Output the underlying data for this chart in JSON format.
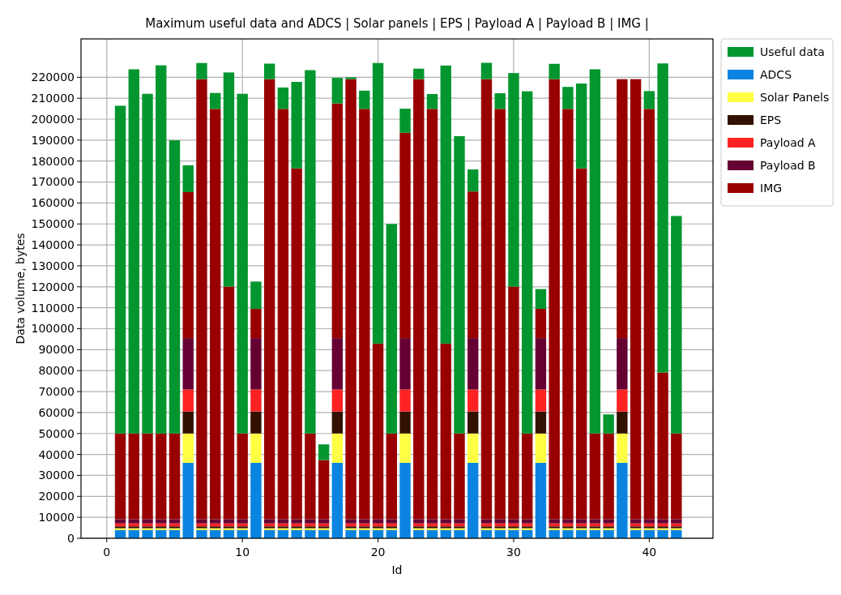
{
  "chart_data": {
    "type": "bar",
    "stacked": true,
    "title": "Maximum useful data and ADCS | Solar panels | EPS | Payload A | Payload B | IMG |",
    "xlabel": "Id",
    "ylabel": "Data volume, bytes",
    "x": [
      1,
      2,
      3,
      4,
      5,
      6,
      7,
      8,
      9,
      10,
      11,
      12,
      13,
      14,
      15,
      16,
      17,
      18,
      19,
      20,
      21,
      22,
      23,
      24,
      25,
      26,
      27,
      28,
      29,
      30,
      31,
      32,
      33,
      34,
      35,
      36,
      37,
      38,
      39,
      40,
      41,
      42
    ],
    "series": [
      {
        "name": "ADCS",
        "color": "#0a84e0",
        "values": [
          3900,
          3900,
          3900,
          3900,
          3900,
          36000,
          3900,
          3900,
          3900,
          3900,
          36000,
          3900,
          3900,
          3900,
          3900,
          3900,
          36000,
          3900,
          3900,
          3900,
          3900,
          36000,
          3900,
          3900,
          3900,
          3900,
          36000,
          3900,
          3900,
          3900,
          3900,
          36000,
          3900,
          3900,
          3900,
          3900,
          3900,
          36000,
          3900,
          3900,
          3900,
          3900
        ]
      },
      {
        "name": "Solar Panels",
        "color": "#ffff44",
        "values": [
          900,
          900,
          900,
          900,
          900,
          14000,
          900,
          900,
          900,
          900,
          14000,
          900,
          900,
          900,
          900,
          900,
          14000,
          900,
          900,
          900,
          900,
          14000,
          900,
          900,
          900,
          900,
          14000,
          900,
          900,
          900,
          900,
          14000,
          900,
          900,
          900,
          900,
          900,
          14000,
          900,
          900,
          900,
          900
        ]
      },
      {
        "name": "EPS",
        "color": "#331100",
        "values": [
          900,
          900,
          900,
          900,
          900,
          10500,
          900,
          900,
          900,
          900,
          10500,
          900,
          900,
          900,
          900,
          900,
          10500,
          900,
          900,
          900,
          900,
          10500,
          900,
          900,
          900,
          900,
          10500,
          900,
          900,
          900,
          900,
          10500,
          900,
          900,
          900,
          900,
          900,
          10500,
          900,
          900,
          900,
          900
        ]
      },
      {
        "name": "Payload A",
        "color": "#ff2222",
        "values": [
          1400,
          1400,
          1400,
          1400,
          1400,
          10500,
          1400,
          1400,
          1400,
          1400,
          10500,
          1400,
          1400,
          1400,
          1400,
          1400,
          10500,
          1400,
          1400,
          1400,
          1400,
          10500,
          1400,
          1400,
          1400,
          1400,
          10500,
          1400,
          1400,
          1400,
          1400,
          10500,
          1400,
          1400,
          1400,
          1400,
          1400,
          10500,
          1400,
          1400,
          1400,
          1400
        ]
      },
      {
        "name": "Payload B",
        "color": "#660033",
        "values": [
          2000,
          2000,
          2000,
          2000,
          2000,
          24500,
          2000,
          2000,
          2000,
          2000,
          24500,
          2000,
          2000,
          2000,
          2000,
          2000,
          24500,
          2000,
          2000,
          2000,
          2000,
          24500,
          2000,
          2000,
          2000,
          2000,
          24500,
          2000,
          2000,
          2000,
          2000,
          24500,
          2000,
          2000,
          2000,
          2000,
          2000,
          24500,
          2000,
          2000,
          2000,
          2000
        ]
      },
      {
        "name": "IMG",
        "color": "#990000",
        "values": [
          40900,
          40900,
          40900,
          40900,
          40900,
          69700,
          210000,
          195800,
          111000,
          40900,
          14000,
          210000,
          195800,
          167400,
          40900,
          28200,
          112000,
          210000,
          195800,
          83800,
          40900,
          98000,
          210000,
          195800,
          83800,
          40900,
          70000,
          210000,
          195800,
          111000,
          40900,
          14000,
          210000,
          195800,
          167400,
          40900,
          40900,
          123600,
          210000,
          195800,
          70000,
          40900
        ]
      },
      {
        "name": "Useful data",
        "color": "#03962f",
        "values": [
          156400,
          173800,
          162100,
          175700,
          139900,
          12800,
          7700,
          7600,
          102200,
          162100,
          13000,
          7400,
          10200,
          41300,
          173400,
          7500,
          12200,
          900,
          8700,
          133900,
          100000,
          11500,
          5000,
          7100,
          132700,
          141900,
          10500,
          7800,
          7500,
          101900,
          163300,
          9400,
          7300,
          10500,
          40500,
          173800,
          9100,
          null,
          null,
          8500,
          147500,
          103800
        ]
      }
    ],
    "xlim": [
      -1.9,
      44.7
    ],
    "xticks": [
      0,
      10,
      20,
      30,
      40
    ],
    "ylim": [
      0,
      238300
    ],
    "yticks": [
      0,
      10000,
      20000,
      30000,
      40000,
      50000,
      60000,
      70000,
      80000,
      90000,
      100000,
      110000,
      120000,
      130000,
      140000,
      150000,
      160000,
      170000,
      180000,
      190000,
      200000,
      210000,
      220000
    ],
    "grid": true,
    "legend": "top right"
  }
}
